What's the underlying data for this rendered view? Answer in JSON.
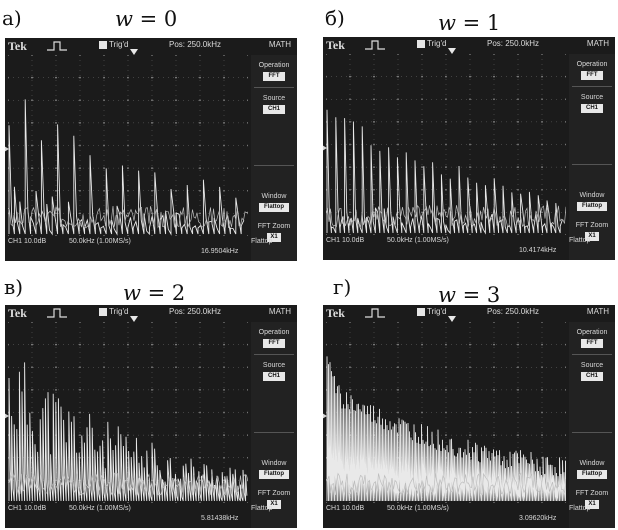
{
  "panels": [
    {
      "letter": "а)",
      "title_var": "w",
      "title_rest": " = 0",
      "scope": {
        "brand": "Tek",
        "trigger": "Trig'd",
        "position": "Pos: 250.0kHz",
        "menu": "MATH",
        "side": [
          {
            "label": "Operation",
            "value": "FFT"
          },
          {
            "label": "Source",
            "value": "CH1"
          },
          {
            "label": "Window",
            "value": "Flattop"
          },
          {
            "label": "FFT Zoom",
            "value": "X1"
          }
        ],
        "channel": "CH1 10.0dB",
        "rate": "50.0kHz (1.00MS/s)",
        "window_label": "Flattop",
        "freq_readout": "16.9504kHz"
      },
      "spectrum": {
        "style": "sparse",
        "start_level": 0.82,
        "decay": 0.55,
        "line_spacing": 5.4,
        "seed": 3
      }
    },
    {
      "letter": "б)",
      "title_var": "w",
      "title_rest": " = 1",
      "scope": {
        "brand": "Tek",
        "trigger": "Trig'd",
        "position": "Pos: 250.0kHz",
        "menu": "MATH",
        "side": [
          {
            "label": "Operation",
            "value": "FFT"
          },
          {
            "label": "Source",
            "value": "CH1"
          },
          {
            "label": "Window",
            "value": "Flattop"
          },
          {
            "label": "FFT Zoom",
            "value": "X1"
          }
        ],
        "channel": "CH1 10.0dB",
        "rate": "50.0kHz (1.00MS/s)",
        "window_label": "Flattop",
        "freq_readout": "10.4174kHz"
      },
      "spectrum": {
        "style": "comb",
        "start_level": 0.78,
        "decay": 0.6,
        "line_spacing": 4.4,
        "seed": 7
      }
    },
    {
      "letter": "в)",
      "title_var": "w",
      "title_rest": " = 2",
      "scope": {
        "brand": "Tek",
        "trigger": "Trig'd",
        "position": "Pos: 250.0kHz",
        "menu": "MATH",
        "side": [
          {
            "label": "Operation",
            "value": "FFT"
          },
          {
            "label": "Source",
            "value": "CH1"
          },
          {
            "label": "Window",
            "value": "Flattop"
          },
          {
            "label": "FFT Zoom",
            "value": "X1"
          }
        ],
        "channel": "CH1 10.0dB",
        "rate": "50.0kHz (1.00MS/s)",
        "window_label": "Flattop",
        "freq_readout": "5.81438kHz"
      },
      "spectrum": {
        "style": "dense",
        "start_level": 0.88,
        "decay": 0.75,
        "line_spacing": 2.6,
        "seed": 11
      }
    },
    {
      "letter": "г)",
      "title_var": "w",
      "title_rest": " = 3",
      "scope": {
        "brand": "Tek",
        "trigger": "Trig'd",
        "position": "Pos: 250.0kHz",
        "menu": "MATH",
        "side": [
          {
            "label": "Operation",
            "value": "FFT"
          },
          {
            "label": "Source",
            "value": "CH1"
          },
          {
            "label": "Window",
            "value": "Flattop"
          },
          {
            "label": "FFT Zoom",
            "value": "X1"
          }
        ],
        "channel": "CH1 10.0dB",
        "rate": "50.0kHz (1.00MS/s)",
        "window_label": "Flattop",
        "freq_readout": "3.09620kHz"
      },
      "spectrum": {
        "style": "continuous",
        "start_level": 0.75,
        "decay": 0.7,
        "line_spacing": 1.5,
        "seed": 19
      }
    }
  ]
}
